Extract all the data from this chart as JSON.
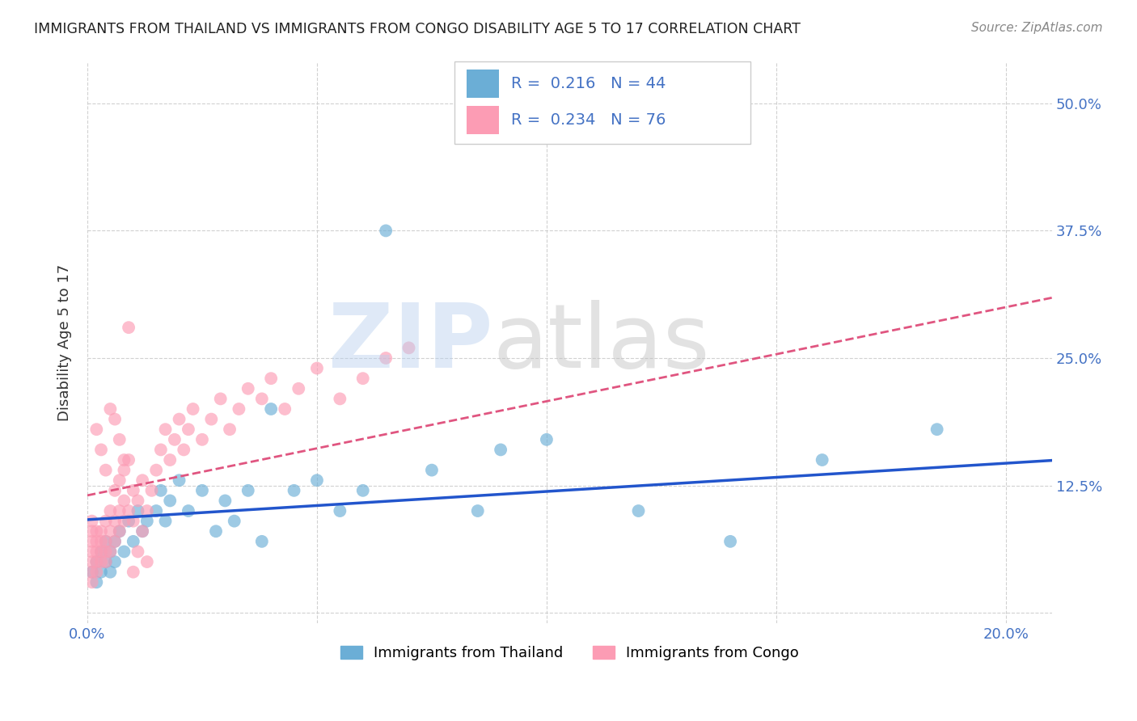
{
  "title": "IMMIGRANTS FROM THAILAND VS IMMIGRANTS FROM CONGO DISABILITY AGE 5 TO 17 CORRELATION CHART",
  "source": "Source: ZipAtlas.com",
  "ylabel": "Disability Age 5 to 17",
  "legend_label1": "Immigrants from Thailand",
  "legend_label2": "Immigrants from Congo",
  "R1": 0.216,
  "N1": 44,
  "R2": 0.234,
  "N2": 76,
  "xlim": [
    0.0,
    0.21
  ],
  "ylim": [
    -0.01,
    0.54
  ],
  "color_thailand": "#6baed6",
  "color_congo": "#fc9cb4",
  "color_axis_label": "#4472c4",
  "color_title": "#222222",
  "color_source": "#888888",
  "thailand_x": [
    0.001,
    0.002,
    0.002,
    0.003,
    0.003,
    0.004,
    0.004,
    0.005,
    0.005,
    0.006,
    0.006,
    0.007,
    0.008,
    0.009,
    0.01,
    0.011,
    0.012,
    0.013,
    0.015,
    0.016,
    0.017,
    0.018,
    0.02,
    0.022,
    0.025,
    0.028,
    0.03,
    0.032,
    0.035,
    0.038,
    0.04,
    0.045,
    0.05,
    0.055,
    0.06,
    0.065,
    0.075,
    0.085,
    0.09,
    0.1,
    0.12,
    0.14,
    0.16,
    0.185
  ],
  "thailand_y": [
    0.04,
    0.05,
    0.03,
    0.06,
    0.04,
    0.05,
    0.07,
    0.06,
    0.04,
    0.07,
    0.05,
    0.08,
    0.06,
    0.09,
    0.07,
    0.1,
    0.08,
    0.09,
    0.1,
    0.12,
    0.09,
    0.11,
    0.13,
    0.1,
    0.12,
    0.08,
    0.11,
    0.09,
    0.12,
    0.07,
    0.2,
    0.12,
    0.13,
    0.1,
    0.12,
    0.375,
    0.14,
    0.1,
    0.16,
    0.17,
    0.1,
    0.07,
    0.15,
    0.18
  ],
  "congo_x": [
    0.001,
    0.001,
    0.001,
    0.001,
    0.001,
    0.001,
    0.001,
    0.002,
    0.002,
    0.002,
    0.002,
    0.002,
    0.003,
    0.003,
    0.003,
    0.003,
    0.004,
    0.004,
    0.004,
    0.004,
    0.005,
    0.005,
    0.005,
    0.006,
    0.006,
    0.006,
    0.007,
    0.007,
    0.007,
    0.008,
    0.008,
    0.008,
    0.009,
    0.009,
    0.01,
    0.01,
    0.011,
    0.012,
    0.013,
    0.014,
    0.015,
    0.016,
    0.017,
    0.018,
    0.019,
    0.02,
    0.021,
    0.022,
    0.023,
    0.025,
    0.027,
    0.029,
    0.031,
    0.033,
    0.035,
    0.038,
    0.04,
    0.043,
    0.046,
    0.05,
    0.055,
    0.06,
    0.065,
    0.07,
    0.002,
    0.003,
    0.004,
    0.005,
    0.006,
    0.007,
    0.008,
    0.009,
    0.01,
    0.011,
    0.012,
    0.013
  ],
  "congo_y": [
    0.04,
    0.05,
    0.06,
    0.07,
    0.08,
    0.03,
    0.09,
    0.05,
    0.06,
    0.07,
    0.08,
    0.04,
    0.05,
    0.06,
    0.07,
    0.08,
    0.05,
    0.07,
    0.09,
    0.06,
    0.06,
    0.08,
    0.1,
    0.07,
    0.09,
    0.12,
    0.08,
    0.1,
    0.13,
    0.09,
    0.11,
    0.14,
    0.1,
    0.15,
    0.09,
    0.12,
    0.11,
    0.13,
    0.1,
    0.12,
    0.14,
    0.16,
    0.18,
    0.15,
    0.17,
    0.19,
    0.16,
    0.18,
    0.2,
    0.17,
    0.19,
    0.21,
    0.18,
    0.2,
    0.22,
    0.21,
    0.23,
    0.2,
    0.22,
    0.24,
    0.21,
    0.23,
    0.25,
    0.26,
    0.18,
    0.16,
    0.14,
    0.2,
    0.19,
    0.17,
    0.15,
    0.28,
    0.04,
    0.06,
    0.08,
    0.05
  ]
}
